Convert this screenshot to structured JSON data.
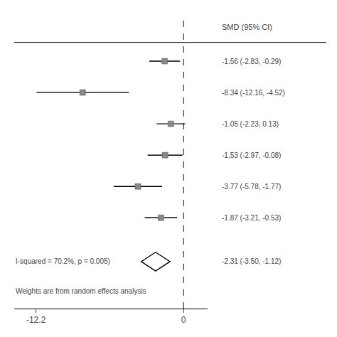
{
  "chart_data": {
    "type": "forest",
    "values": [
      -1.56,
      -8.34,
      -1.05,
      -1.53,
      -3.77,
      -1.87
    ],
    "ci_lo": [
      -2.83,
      -12.16,
      -2.23,
      -2.97,
      -5.78,
      -3.21
    ],
    "ci_hi": [
      -0.29,
      -4.52,
      0.13,
      -0.08,
      -1.77,
      -0.53
    ],
    "value_labels": [
      "-1.56 (-2.83, -0.29)",
      "-8.34 (-12.16, -4.52)",
      "-1.05 (-2.23, 0.13)",
      "-1.53 (-2.97, -0.08)",
      "-3.77 (-5.78, -1.77)",
      "-1.87 (-3.21, -0.53)"
    ],
    "pooled": {
      "value": -2.31,
      "ci_lo": -3.5,
      "ci_hi": -1.12,
      "value_label": "-2.31 (-3.50, -1.12)"
    },
    "column_header": "SMD (95% CI)",
    "annotations": [
      "I-squared = 70.2%, p = 0.005)",
      "Weights are from random effects analysis"
    ],
    "reference_line": 0,
    "xlim": [
      -14,
      2
    ],
    "xticks": [
      -12.2,
      0
    ],
    "color": "#888888",
    "marker": "square",
    "grid": false
  }
}
